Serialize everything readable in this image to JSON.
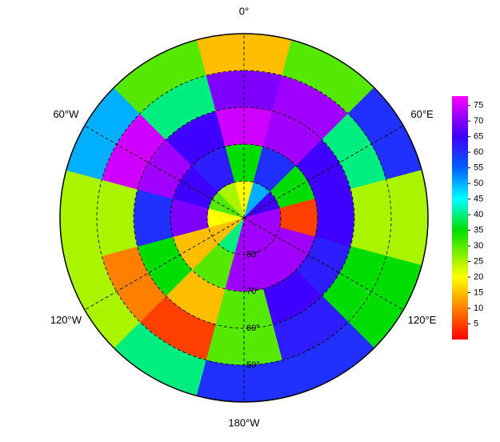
{
  "chart_data": {
    "type": "polar_heatmap",
    "lat_edges": [
      90,
      80,
      70,
      60,
      50,
      40
    ],
    "lon_edges": [
      -15,
      15,
      45,
      75,
      105,
      135,
      165,
      195,
      225,
      255,
      285,
      315,
      345
    ],
    "values": [
      [
        20,
        50,
        65,
        72,
        72,
        72,
        72,
        40,
        15,
        20,
        30,
        25
      ],
      [
        35,
        60,
        35,
        5,
        72,
        72,
        72,
        30,
        15,
        70,
        65,
        62
      ],
      [
        75,
        72,
        65,
        65,
        62,
        65,
        30,
        15,
        35,
        60,
        72,
        65
      ],
      [
        70,
        72,
        40,
        25,
        35,
        62,
        30,
        5,
        10,
        25,
        75,
        40
      ],
      [
        15,
        30,
        60,
        25,
        35,
        60,
        60,
        40,
        25,
        25,
        50,
        30
      ]
    ],
    "meridians": [
      {
        "value": 0,
        "label": "0°"
      },
      {
        "value": 60,
        "label": "60°E"
      },
      {
        "value": 120,
        "label": "120°E"
      },
      {
        "value": 180,
        "label": "180°W"
      },
      {
        "value": -120,
        "label": "120°W"
      },
      {
        "value": -60,
        "label": "60°W"
      }
    ],
    "parallels": [
      {
        "value": 80,
        "label": "80°"
      },
      {
        "value": 70,
        "label": "70°"
      },
      {
        "value": 60,
        "label": "60°"
      },
      {
        "value": 50,
        "label": "50°"
      }
    ],
    "colorbar": {
      "lim": [
        0,
        78
      ],
      "ticks": [
        5,
        10,
        15,
        20,
        25,
        30,
        35,
        40,
        45,
        50,
        55,
        60,
        65,
        70,
        75
      ]
    },
    "colormap": [
      {
        "value": 0,
        "color": "#ff0000"
      },
      {
        "value": 20,
        "color": "#ffff00"
      },
      {
        "value": 35,
        "color": "#00dd00"
      },
      {
        "value": 45,
        "color": "#00ffff"
      },
      {
        "value": 55,
        "color": "#0060ff"
      },
      {
        "value": 65,
        "color": "#4000ff"
      },
      {
        "value": 70,
        "color": "#8000ff"
      },
      {
        "value": 78,
        "color": "#ff00ff"
      }
    ]
  }
}
